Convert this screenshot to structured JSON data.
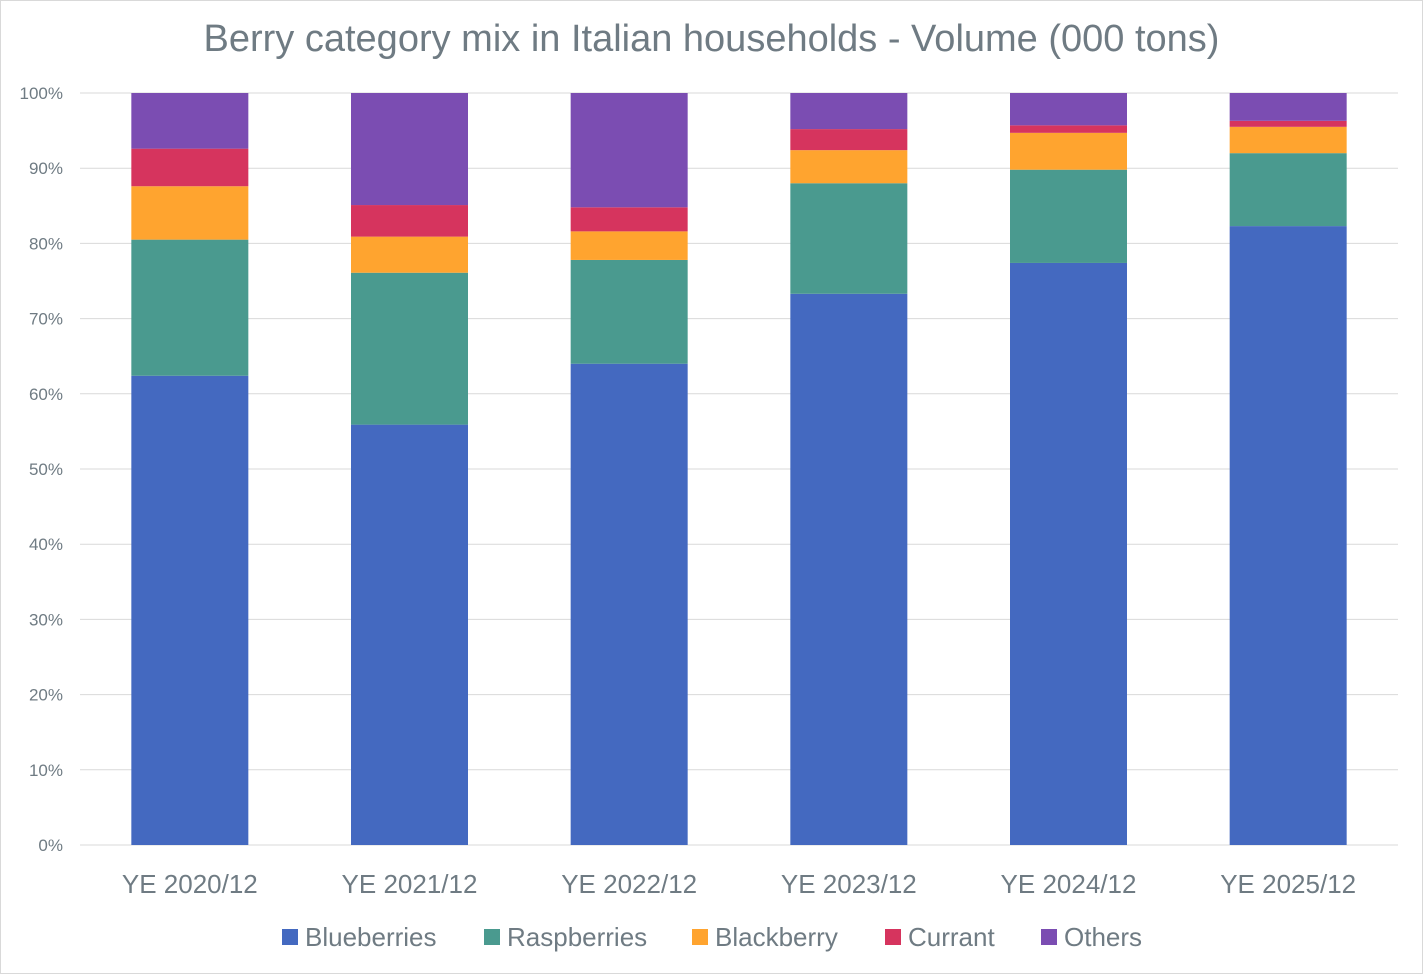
{
  "chart_data": {
    "type": "bar",
    "stacked": "percent",
    "title": "Berry category mix in Italian households - Volume (000 tons)",
    "xlabel": "",
    "ylabel": "",
    "ylim": [
      0,
      100
    ],
    "yticks": [
      "0%",
      "10%",
      "20%",
      "30%",
      "40%",
      "50%",
      "60%",
      "70%",
      "80%",
      "90%",
      "100%"
    ],
    "grid": true,
    "legend_position": "bottom",
    "categories": [
      "YE 2020/12",
      "YE 2021/12",
      "YE 2022/12",
      "YE 2023/12",
      "YE 2024/12",
      "YE 2025/12"
    ],
    "series": [
      {
        "name": "Blueberries",
        "color": "#4469c0",
        "values": [
          62.4,
          55.9,
          64.0,
          73.3,
          77.4,
          82.3
        ]
      },
      {
        "name": "Raspberries",
        "color": "#4a9a8f",
        "values": [
          18.1,
          20.2,
          13.8,
          14.7,
          12.4,
          9.7
        ]
      },
      {
        "name": "Blackberry",
        "color": "#ffa42f",
        "values": [
          7.1,
          4.8,
          3.8,
          4.4,
          4.9,
          3.5
        ]
      },
      {
        "name": "Currant",
        "color": "#d6345e",
        "values": [
          5.0,
          4.2,
          3.2,
          2.8,
          1.0,
          0.8
        ]
      },
      {
        "name": "Others",
        "color": "#7b4db2",
        "values": [
          7.4,
          14.9,
          15.2,
          4.8,
          4.3,
          3.7
        ]
      }
    ]
  }
}
